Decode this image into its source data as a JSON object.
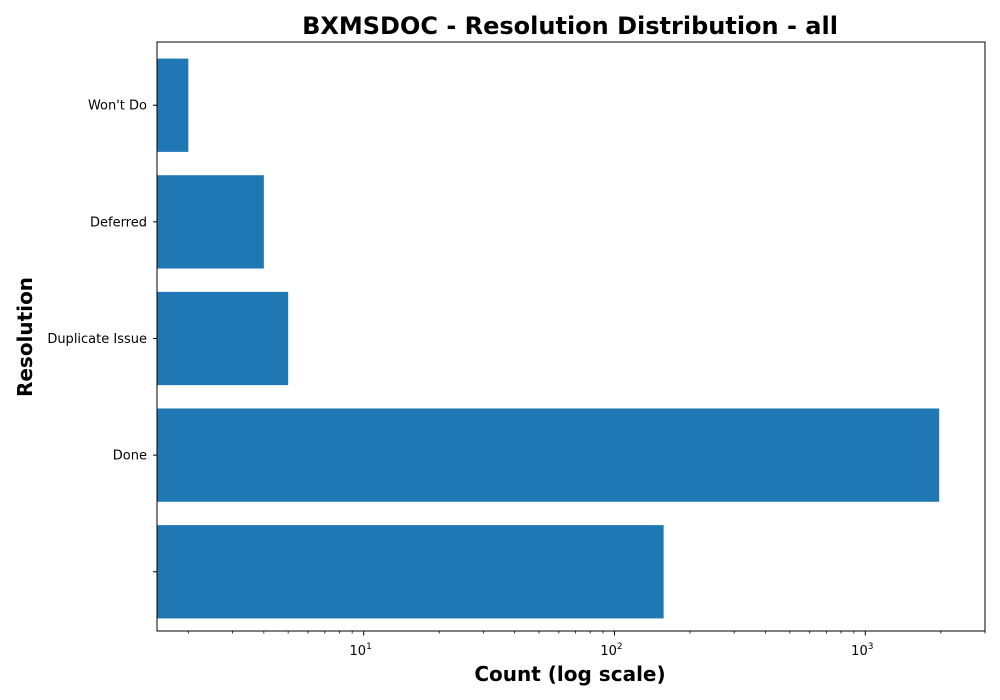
{
  "chart_data": {
    "type": "bar",
    "orientation": "horizontal",
    "title": "BXMSDOC - Resolution Distribution - all",
    "xlabel": "Count (log scale)",
    "ylabel": "Resolution",
    "x_scale": "log",
    "xlim": [
      1.5,
      3000
    ],
    "grid": false,
    "categories": [
      "",
      "Done",
      "Duplicate Issue",
      "Deferred",
      "Won't Do"
    ],
    "values": [
      157,
      1970,
      5,
      4,
      2
    ],
    "x_ticks": [
      {
        "base": "10",
        "exp": "1",
        "value": 10
      },
      {
        "base": "10",
        "exp": "2",
        "value": 100
      },
      {
        "base": "10",
        "exp": "3",
        "value": 1000
      }
    ],
    "bar_color": "#1f77b4"
  }
}
